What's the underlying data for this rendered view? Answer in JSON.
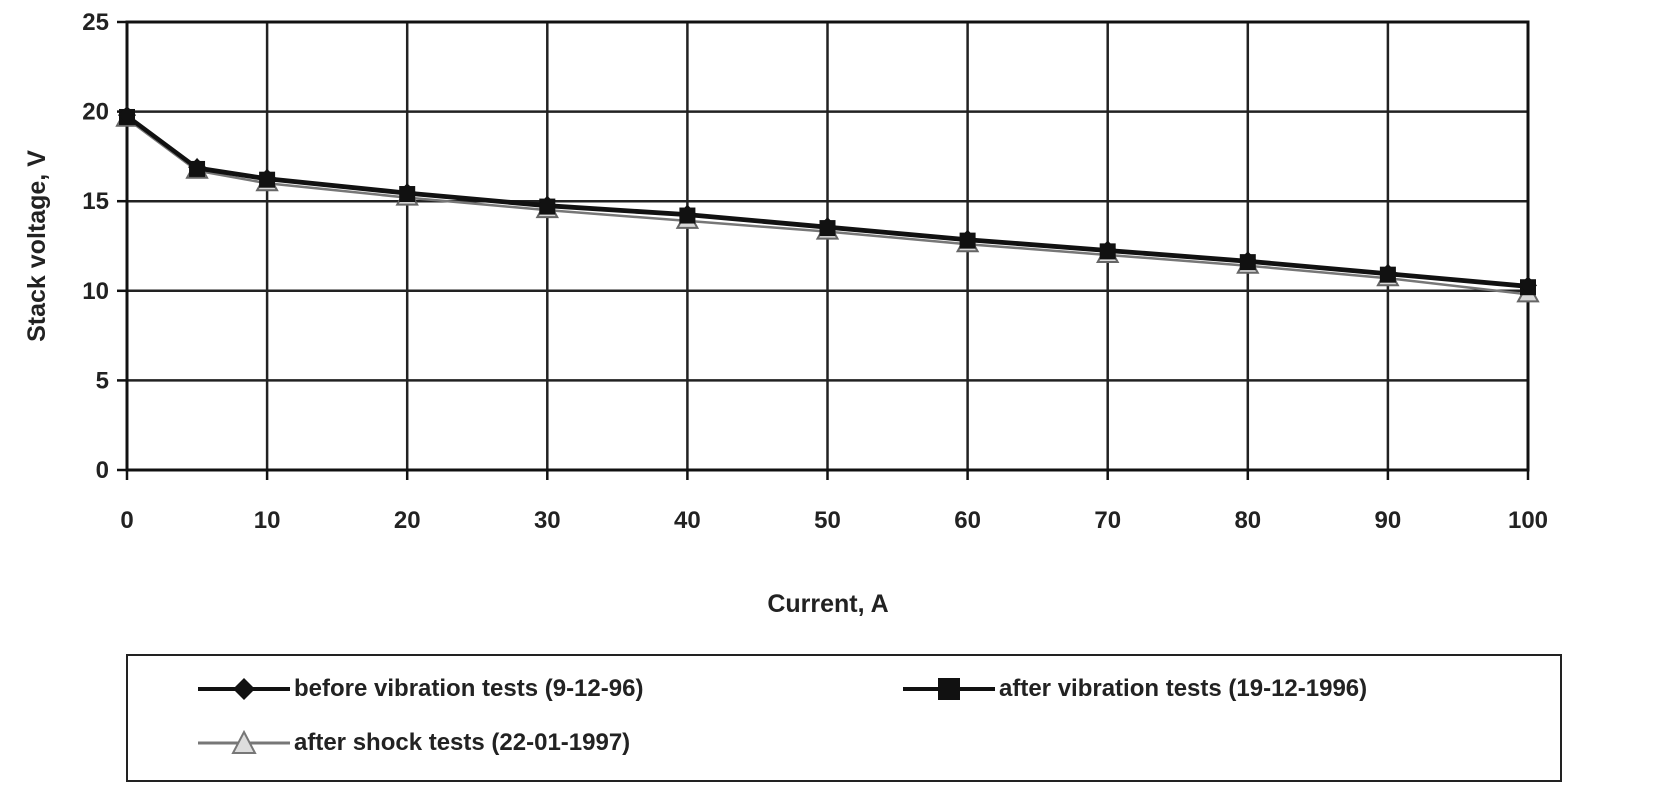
{
  "chart_data": {
    "type": "line",
    "title": "",
    "xlabel": "Current, A",
    "ylabel": "Stack voltage, V",
    "xlim": [
      0,
      100
    ],
    "ylim": [
      0,
      25
    ],
    "xticks": [
      0,
      10,
      20,
      30,
      40,
      50,
      60,
      70,
      80,
      90,
      100
    ],
    "yticks": [
      0,
      5,
      10,
      15,
      20,
      25
    ],
    "grid": true,
    "legend_position": "bottom",
    "x": [
      0,
      5,
      10,
      20,
      30,
      40,
      50,
      60,
      70,
      80,
      90,
      100
    ],
    "series": [
      {
        "name": "before vibration tests (9-12-96)",
        "marker": "diamond",
        "color": "#111111",
        "values": [
          19.8,
          16.9,
          16.3,
          15.5,
          14.8,
          14.3,
          13.6,
          12.9,
          12.3,
          11.7,
          11.0,
          10.3
        ]
      },
      {
        "name": "after vibration tests (19-12-1996)",
        "marker": "square",
        "color": "#111111",
        "values": [
          19.7,
          16.8,
          16.2,
          15.4,
          14.7,
          14.2,
          13.5,
          12.8,
          12.2,
          11.6,
          10.9,
          10.2
        ]
      },
      {
        "name": "after shock tests (22-01-1997)",
        "marker": "triangle",
        "color": "#777777",
        "values": [
          19.6,
          16.7,
          16.0,
          15.2,
          14.5,
          13.9,
          13.3,
          12.6,
          12.0,
          11.4,
          10.7,
          9.8
        ]
      }
    ]
  }
}
